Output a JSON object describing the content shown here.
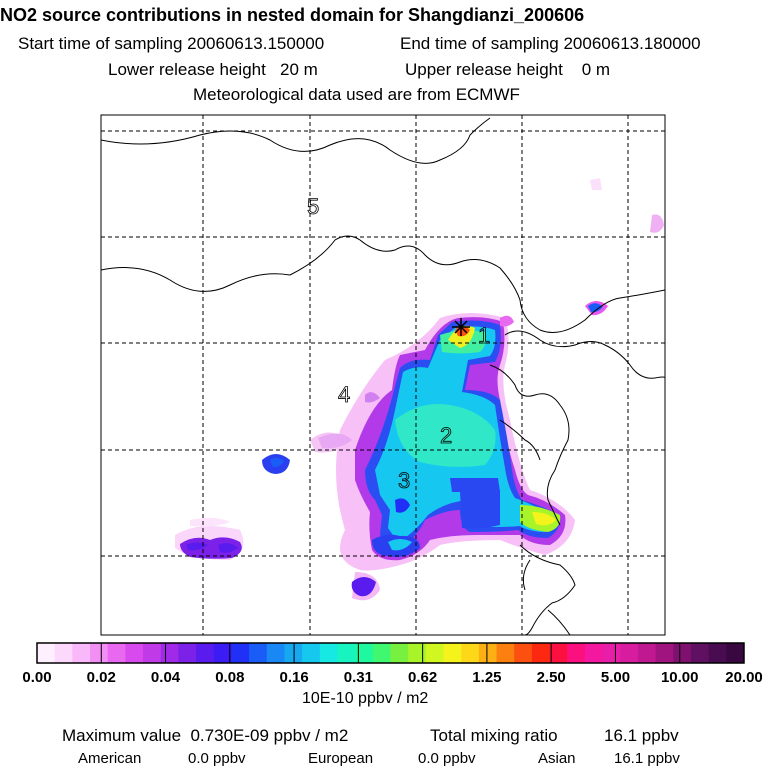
{
  "header": {
    "title": "NO2 source contributions in nested domain for Shangdianzi_200606",
    "start_time": "Start time of sampling 20060613.150000",
    "end_time": "End time of sampling 20060613.180000",
    "lower_height": "Lower release height   20 m",
    "upper_height": "Upper release height    0 m",
    "meteo": "Meteorological data used are from ECMWF"
  },
  "map": {
    "region_labels": [
      "1",
      "2",
      "3",
      "4",
      "5"
    ],
    "receptor_marker": "star-marker"
  },
  "colorbar": {
    "tick_labels": [
      "0.00",
      "0.02",
      "0.04",
      "0.08",
      "0.16",
      "0.31",
      "0.62",
      "1.25",
      "2.50",
      "5.00",
      "10.00",
      "20.00"
    ],
    "colors": [
      "#fef0fe",
      "#fcd9fc",
      "#f9b8f9",
      "#f28ff4",
      "#e868f0",
      "#d84aee",
      "#c03ae8",
      "#a02ae8",
      "#7c22e8",
      "#5a1cee",
      "#3b1cf4",
      "#2030f6",
      "#1a5cf6",
      "#1a88f4",
      "#18a8f0",
      "#16c8ee",
      "#16e8e4",
      "#18f4c0",
      "#20f8a0",
      "#40f870",
      "#78f040",
      "#a8f428",
      "#d0f820",
      "#f4f41c",
      "#fcd818",
      "#fcb014",
      "#fc8010",
      "#fc5010",
      "#fc2810",
      "#fc1040",
      "#fc1080",
      "#f418a0",
      "#e81ea8",
      "#d81ca0",
      "#c01890",
      "#a01480",
      "#801070",
      "#601060",
      "#4a0c50",
      "#3a0840"
    ],
    "unit": "10E-10 ppbv / m2"
  },
  "footer": {
    "max_value": "Maximum value  0.730E-09 ppbv / m2",
    "total_label": "Total mixing ratio",
    "total_value": "16.1 ppbv",
    "american_label": "American",
    "american_value": "0.0 ppbv",
    "european_label": "European",
    "european_value": "0.0 ppbv",
    "asian_label": "Asian",
    "asian_value": "16.1 ppbv"
  }
}
